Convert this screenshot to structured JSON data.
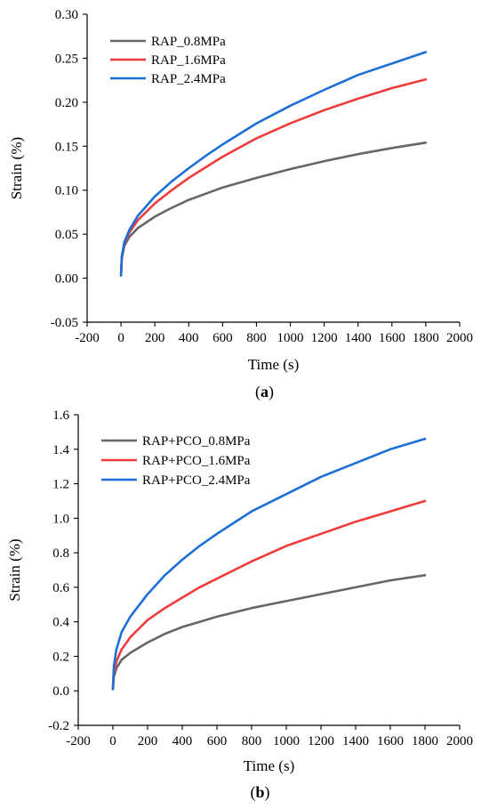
{
  "chart_data": [
    {
      "type": "line",
      "panel_label": "a",
      "xlabel": "Time (s)",
      "ylabel": "Strain (%)",
      "xlim": [
        -200,
        2000
      ],
      "ylim": [
        -0.05,
        0.3
      ],
      "xticks": [
        -200,
        0,
        200,
        400,
        600,
        800,
        1000,
        1200,
        1400,
        1600,
        1800,
        2000
      ],
      "xtick_labels": [
        "-200",
        "0",
        "200",
        "400",
        "600",
        "800",
        "1000",
        "1200",
        "1400",
        "1600",
        "1800",
        "2000"
      ],
      "yticks": [
        -0.05,
        0.0,
        0.05,
        0.1,
        0.15,
        0.2,
        0.25,
        0.3
      ],
      "ytick_labels": [
        "-0.05",
        "0.00",
        "0.05",
        "0.10",
        "0.15",
        "0.20",
        "0.25",
        "0.30"
      ],
      "legend_position": "top-left",
      "grid": false,
      "series": [
        {
          "name": "RAP_0.8MPa",
          "color": "#666666",
          "x": [
            0,
            5,
            20,
            50,
            100,
            200,
            300,
            400,
            500,
            600,
            800,
            1000,
            1200,
            1400,
            1600,
            1800
          ],
          "y": [
            0.003,
            0.022,
            0.037,
            0.047,
            0.057,
            0.07,
            0.08,
            0.089,
            0.096,
            0.103,
            0.114,
            0.124,
            0.133,
            0.141,
            0.148,
            0.154
          ]
        },
        {
          "name": "RAP_1.6MPa",
          "color": "#ef3b3b",
          "x": [
            0,
            5,
            20,
            50,
            100,
            200,
            300,
            400,
            500,
            600,
            800,
            1000,
            1200,
            1400,
            1600,
            1800
          ],
          "y": [
            0.003,
            0.024,
            0.04,
            0.052,
            0.066,
            0.085,
            0.1,
            0.114,
            0.126,
            0.138,
            0.159,
            0.176,
            0.191,
            0.204,
            0.216,
            0.226
          ]
        },
        {
          "name": "RAP_2.4MPa",
          "color": "#1c6fd8",
          "x": [
            0,
            5,
            20,
            50,
            100,
            200,
            300,
            400,
            500,
            600,
            800,
            1000,
            1200,
            1400,
            1600,
            1800
          ],
          "y": [
            0.003,
            0.025,
            0.041,
            0.055,
            0.071,
            0.093,
            0.11,
            0.125,
            0.139,
            0.152,
            0.176,
            0.196,
            0.214,
            0.231,
            0.244,
            0.257
          ]
        }
      ]
    },
    {
      "type": "line",
      "panel_label": "b",
      "xlabel": "Time (s)",
      "ylabel": "Strain (%)",
      "xlim": [
        -200,
        2000
      ],
      "ylim": [
        -0.2,
        1.6
      ],
      "xticks": [
        -200,
        0,
        200,
        400,
        600,
        800,
        1000,
        1200,
        1400,
        1600,
        1800,
        2000
      ],
      "xtick_labels": [
        "-200",
        "0",
        "200",
        "400",
        "600",
        "800",
        "1000",
        "1200",
        "1400",
        "1600",
        "1800",
        "2000"
      ],
      "yticks": [
        -0.2,
        0.0,
        0.2,
        0.4,
        0.6,
        0.8,
        1.0,
        1.2,
        1.4,
        1.6
      ],
      "ytick_labels": [
        "-0.2",
        "0.0",
        "0.2",
        "0.4",
        "0.6",
        "0.8",
        "1.0",
        "1.2",
        "1.4",
        "1.6"
      ],
      "legend_position": "top-left",
      "grid": false,
      "series": [
        {
          "name": "RAP+PCO_0.8MPa",
          "color": "#666666",
          "x": [
            0,
            5,
            20,
            50,
            100,
            200,
            300,
            400,
            500,
            600,
            800,
            1000,
            1200,
            1400,
            1600,
            1800
          ],
          "y": [
            0.01,
            0.08,
            0.13,
            0.18,
            0.22,
            0.28,
            0.33,
            0.37,
            0.4,
            0.43,
            0.48,
            0.52,
            0.56,
            0.6,
            0.64,
            0.67
          ]
        },
        {
          "name": "RAP+PCO_1.6MPa",
          "color": "#ef3b3b",
          "x": [
            0,
            5,
            20,
            50,
            100,
            200,
            300,
            400,
            500,
            600,
            800,
            1000,
            1200,
            1400,
            1600,
            1800
          ],
          "y": [
            0.01,
            0.1,
            0.17,
            0.24,
            0.31,
            0.41,
            0.48,
            0.54,
            0.6,
            0.65,
            0.75,
            0.84,
            0.91,
            0.98,
            1.04,
            1.1
          ]
        },
        {
          "name": "RAP+PCO_2.4MPa",
          "color": "#1c6fd8",
          "x": [
            0,
            5,
            20,
            50,
            100,
            200,
            300,
            400,
            500,
            600,
            800,
            1000,
            1200,
            1400,
            1600,
            1800
          ],
          "y": [
            0.01,
            0.14,
            0.24,
            0.34,
            0.43,
            0.56,
            0.67,
            0.76,
            0.84,
            0.91,
            1.04,
            1.14,
            1.24,
            1.32,
            1.4,
            1.46
          ]
        }
      ]
    }
  ]
}
